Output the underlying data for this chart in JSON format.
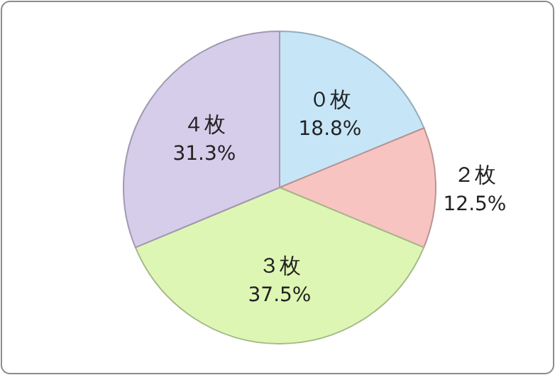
{
  "chart_data": {
    "type": "pie",
    "categories": [
      "０枚",
      "２枚",
      "３枚",
      "４枚"
    ],
    "values": [
      18.8,
      12.5,
      37.5,
      31.3
    ],
    "value_labels": [
      "18.8%",
      "12.5%",
      "37.5%",
      "31.3%"
    ],
    "colors": [
      "#c6e6f8",
      "#f8c4c2",
      "#def6b4",
      "#d6cdea"
    ]
  }
}
